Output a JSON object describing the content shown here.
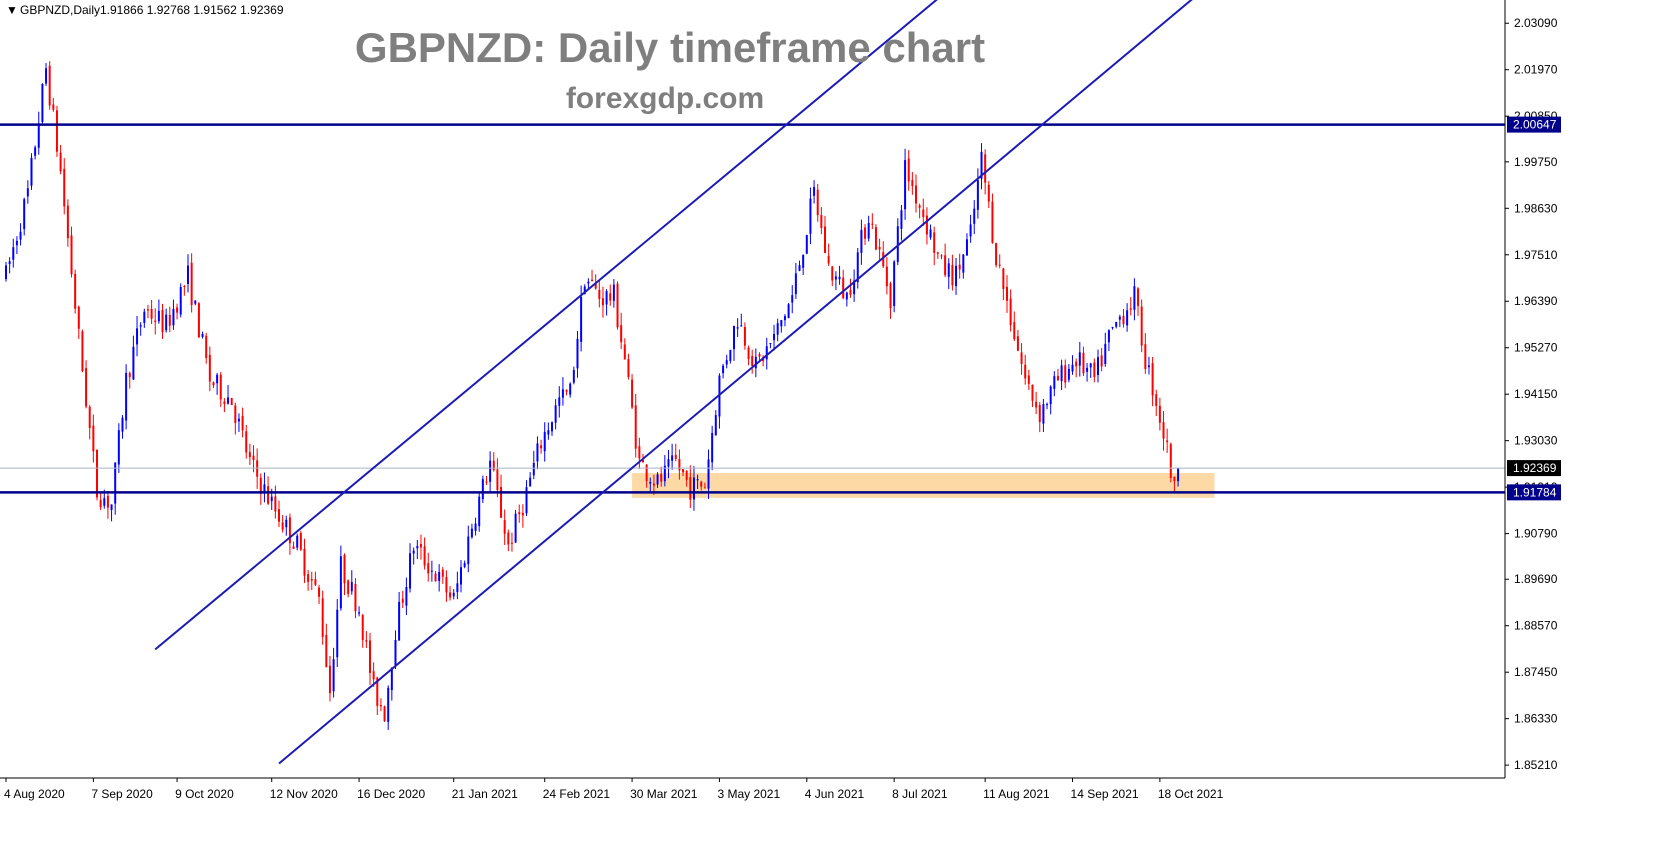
{
  "header": {
    "symbol": "GBPNZD,Daily",
    "ohlc": "1.91866 1.92768 1.91562 1.92369"
  },
  "chart_data": {
    "type": "candlestick",
    "title": "GBPNZD: Daily timeframe chart",
    "subtitle": "forexgdp.com",
    "ylim": [
      1.849,
      2.0365
    ],
    "y_ticks": [
      "2.03090",
      "2.01970",
      "2.00850",
      "1.99750",
      "1.98630",
      "1.97510",
      "1.96390",
      "1.95270",
      "1.94150",
      "1.93030",
      "1.91910",
      "1.90790",
      "1.89690",
      "1.88570",
      "1.87450",
      "1.86330",
      "1.85210"
    ],
    "x_ticks": [
      {
        "label": "4 Aug 2020",
        "index": 0
      },
      {
        "label": "7 Sep 2020",
        "index": 24
      },
      {
        "label": "9 Oct 2020",
        "index": 47
      },
      {
        "label": "12 Nov 2020",
        "index": 73
      },
      {
        "label": "16 Dec 2020",
        "index": 97
      },
      {
        "label": "21 Jan 2021",
        "index": 123
      },
      {
        "label": "24 Feb 2021",
        "index": 148
      },
      {
        "label": "30 Mar 2021",
        "index": 172
      },
      {
        "label": "3 May 2021",
        "index": 196
      },
      {
        "label": "4 Jun 2021",
        "index": 220
      },
      {
        "label": "8 Jul 2021",
        "index": 244
      },
      {
        "label": "11 Aug 2021",
        "index": 269
      },
      {
        "label": "14 Sep 2021",
        "index": 293
      },
      {
        "label": "18 Oct 2021",
        "index": 317
      }
    ],
    "candle_count": 323,
    "price_path": [
      [
        0,
        1.97
      ],
      [
        6,
        1.99
      ],
      [
        11,
        2.02
      ],
      [
        15,
        1.995
      ],
      [
        20,
        1.955
      ],
      [
        25,
        1.918
      ],
      [
        29,
        1.915
      ],
      [
        33,
        1.945
      ],
      [
        38,
        1.962
      ],
      [
        44,
        1.958
      ],
      [
        50,
        1.97
      ],
      [
        56,
        1.945
      ],
      [
        62,
        1.94
      ],
      [
        67,
        1.925
      ],
      [
        73,
        1.915
      ],
      [
        80,
        1.905
      ],
      [
        86,
        1.892
      ],
      [
        89,
        1.87
      ],
      [
        92,
        1.9
      ],
      [
        97,
        1.89
      ],
      [
        101,
        1.87
      ],
      [
        104,
        1.865
      ],
      [
        107,
        1.885
      ],
      [
        112,
        1.905
      ],
      [
        118,
        1.898
      ],
      [
        123,
        1.892
      ],
      [
        128,
        1.91
      ],
      [
        133,
        1.925
      ],
      [
        138,
        1.905
      ],
      [
        142,
        1.915
      ],
      [
        147,
        1.93
      ],
      [
        152,
        1.94
      ],
      [
        155,
        1.942
      ],
      [
        159,
        1.97
      ],
      [
        163,
        1.965
      ],
      [
        167,
        1.965
      ],
      [
        170,
        1.95
      ],
      [
        174,
        1.925
      ],
      [
        179,
        1.92
      ],
      [
        184,
        1.925
      ],
      [
        188,
        1.919
      ],
      [
        192,
        1.92
      ],
      [
        196,
        1.945
      ],
      [
        201,
        1.96
      ],
      [
        206,
        1.948
      ],
      [
        211,
        1.955
      ],
      [
        216,
        1.965
      ],
      [
        222,
        1.99
      ],
      [
        226,
        1.972
      ],
      [
        231,
        1.965
      ],
      [
        237,
        1.985
      ],
      [
        243,
        1.965
      ],
      [
        247,
        1.996
      ],
      [
        252,
        1.985
      ],
      [
        257,
        1.972
      ],
      [
        261,
        1.97
      ],
      [
        265,
        1.98
      ],
      [
        268,
        1.998
      ],
      [
        272,
        1.975
      ],
      [
        276,
        1.96
      ],
      [
        280,
        1.945
      ],
      [
        284,
        1.937
      ],
      [
        289,
        1.945
      ],
      [
        294,
        1.95
      ],
      [
        299,
        1.945
      ],
      [
        303,
        1.955
      ],
      [
        306,
        1.96
      ],
      [
        310,
        1.965
      ],
      [
        313,
        1.95
      ],
      [
        316,
        1.94
      ],
      [
        319,
        1.928
      ],
      [
        321,
        1.918
      ],
      [
        322,
        1.9237
      ]
    ],
    "horizontal_lines": [
      {
        "price": 2.00647,
        "label": "2.00647"
      },
      {
        "price": 1.91784,
        "label": "1.91784"
      }
    ],
    "current_price": {
      "price": 1.92369,
      "label": "1.92369"
    },
    "support_zone": {
      "index_from": 172,
      "index_to": 332,
      "price_top": 1.9225,
      "price_bottom": 1.9165
    },
    "channel_lines": [
      {
        "i1": 41,
        "p1": 1.88,
        "i2": 259,
        "p2": 2.039
      },
      {
        "i1": 75,
        "p1": 1.8525,
        "i2": 329,
        "p2": 2.039
      }
    ],
    "colors": {
      "bull": "#0000ff",
      "bear": "#ff0000",
      "level_line": "#00008b",
      "channel": "#1c1cb4",
      "zone": "#fdd9a6",
      "current_line": "#a9b4c4",
      "tag_bg": "#000000",
      "tag_blue": "#00008b"
    }
  }
}
